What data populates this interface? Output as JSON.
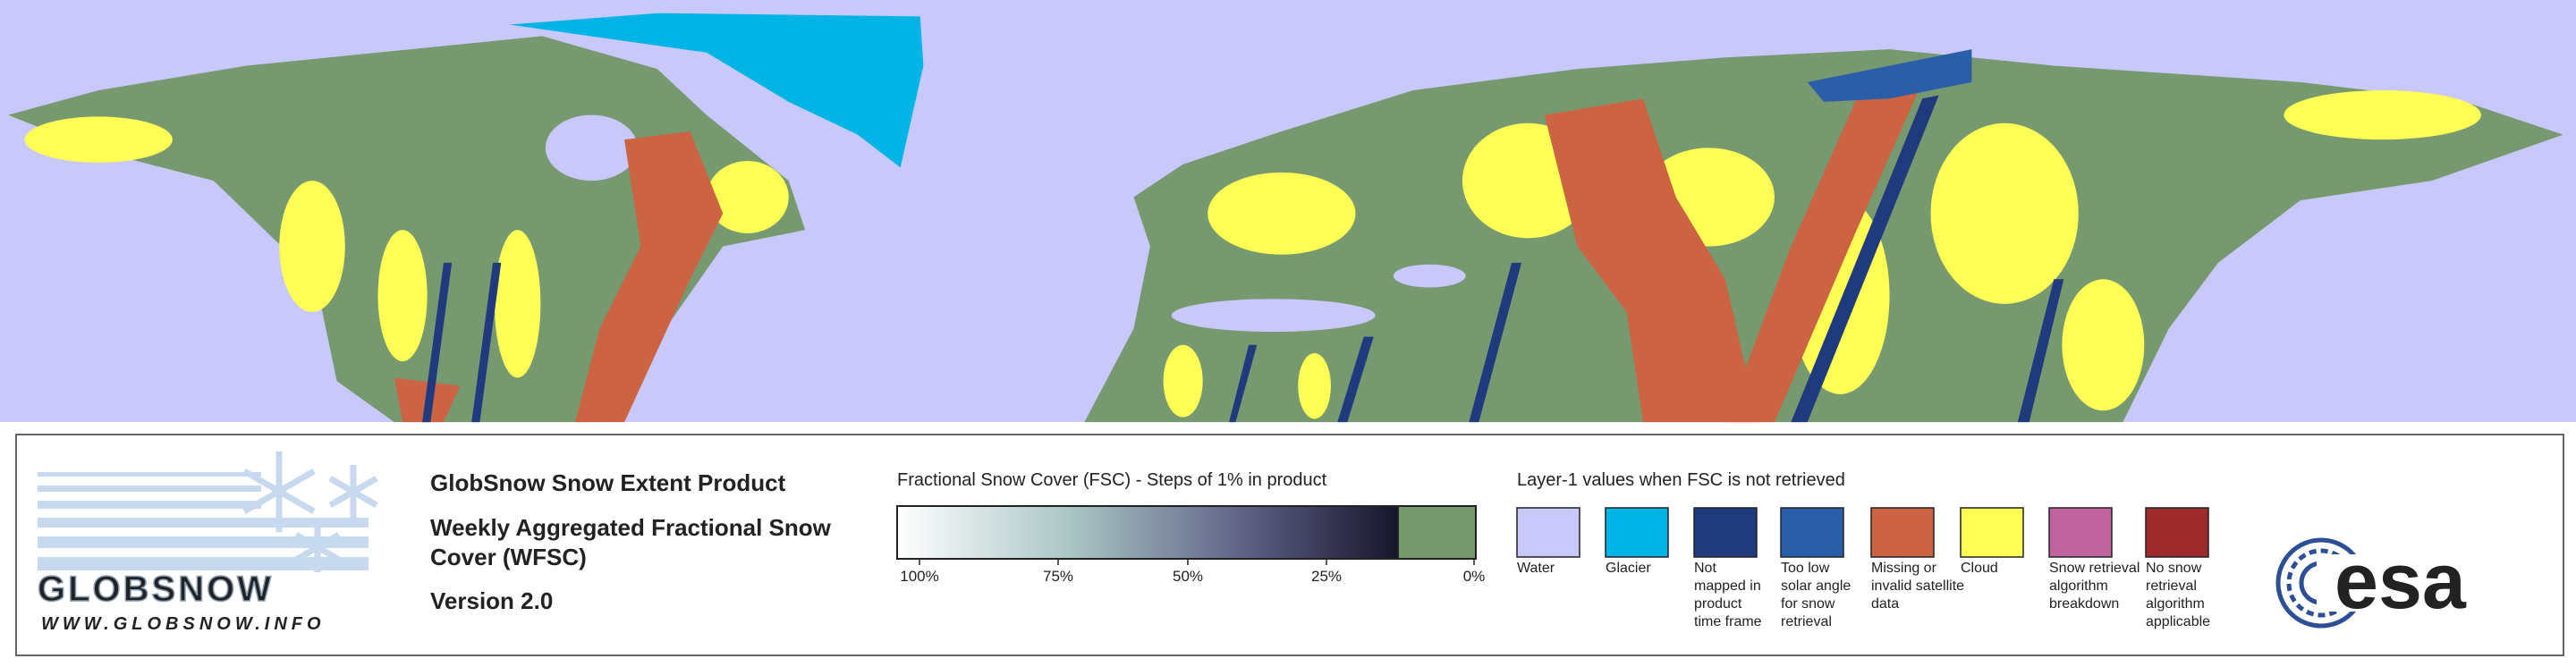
{
  "logo": {
    "name": "GLOBSNOW",
    "url": "WWW.GLOBSNOW.INFO"
  },
  "product": {
    "title": "GlobSnow Snow Extent Product",
    "subtitle_lines": [
      "Weekly Aggregated Fractional Snow",
      "Cover (WFSC)"
    ],
    "version": "Version 2.0"
  },
  "fsc_scale": {
    "title": "Fractional Snow Cover (FSC) - Steps of 1% in product",
    "labels": [
      "100%",
      "75%",
      "50%",
      "25%",
      "0%"
    ]
  },
  "layer1": {
    "title": "Layer-1 values when FSC is not retrieved",
    "classes": [
      {
        "label_lines": [
          "Water"
        ],
        "color": "#c8c8fa"
      },
      {
        "label_lines": [
          "Glacier"
        ],
        "color": "#00b4e6"
      },
      {
        "label_lines": [
          "Not",
          "mapped in",
          "product",
          "time frame"
        ],
        "color": "#1f3a7d"
      },
      {
        "label_lines": [
          "Too low",
          "solar angle",
          "for snow",
          "retrieval"
        ],
        "color": "#2a5ea8"
      },
      {
        "label_lines": [
          "Missing or",
          "invalid satellite",
          "data"
        ],
        "color": "#cc6343"
      },
      {
        "label_lines": [
          "Cloud"
        ],
        "color": "#ffff55"
      },
      {
        "label_lines": [
          "Snow retrieval",
          "algorithm",
          "breakdown"
        ],
        "color": "#c0629e"
      },
      {
        "label_lines": [
          "No snow",
          "retrieval",
          "algorithm",
          "applicable"
        ],
        "color": "#9e2b2b"
      }
    ]
  },
  "agency": "esa"
}
